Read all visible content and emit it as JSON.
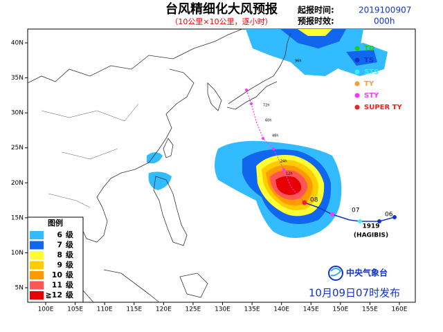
{
  "header": {
    "title": "台风精细化大风预报",
    "subtitle": "（10公里×10公里，逐小时）"
  },
  "info": {
    "start_label": "起报时间:",
    "start_value": "2019100907",
    "lead_label": "预报时效:",
    "lead_value": "000h"
  },
  "map": {
    "x_labels": [
      "100E",
      "105E",
      "110E",
      "115E",
      "120E",
      "125E",
      "130E",
      "135E",
      "140E",
      "145E",
      "150E",
      "155E",
      "160E"
    ],
    "y_labels": [
      "40N",
      "35N",
      "30N",
      "25N",
      "20N",
      "15N",
      "10N",
      "5N"
    ]
  },
  "intensity_legend": [
    {
      "label": "TD",
      "color": "#22cc22"
    },
    {
      "label": "TS",
      "color": "#1133cc"
    },
    {
      "label": "STS",
      "color": "#33eeff"
    },
    {
      "label": "TY",
      "color": "#ff9933"
    },
    {
      "label": "STY",
      "color": "#ff33ff"
    },
    {
      "label": "SUPER TY",
      "color": "#ee2222"
    }
  ],
  "wind_legend": {
    "title": "图例",
    "rows": [
      {
        "level": "6",
        "unit": "级",
        "color": "#33bbff"
      },
      {
        "level": "7",
        "unit": "级",
        "color": "#1166ee"
      },
      {
        "level": "8",
        "unit": "级",
        "color": "#ffff33"
      },
      {
        "level": "9",
        "unit": "级",
        "color": "#ffcc00"
      },
      {
        "level": "10",
        "unit": "级",
        "color": "#ff9900"
      },
      {
        "level": "11",
        "unit": "级",
        "color": "#ff5555"
      },
      {
        "level": "≧12",
        "unit": "级",
        "color": "#e60000"
      }
    ]
  },
  "storm": {
    "number": "1919",
    "name": "(HAGIBIS)",
    "track_labels": [
      "06",
      "07",
      "08",
      "12h",
      "24h",
      "48h",
      "60h",
      "72h",
      "96h"
    ]
  },
  "footer": {
    "agency": "中央气象台",
    "issued": "10月09日07时发布"
  }
}
